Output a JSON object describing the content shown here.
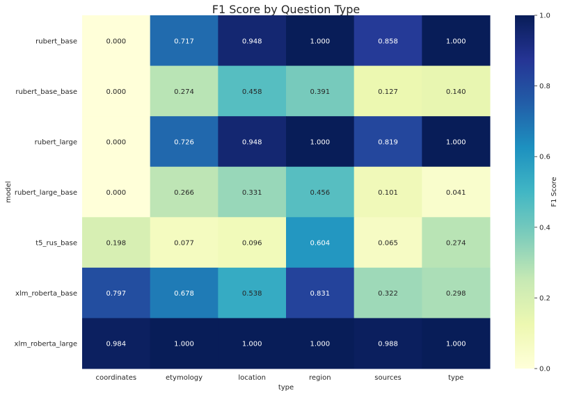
{
  "chart_data": {
    "type": "heatmap",
    "title": "F1 Score by Question Type",
    "xlabel": "type",
    "ylabel": "model",
    "x_categories": [
      "coordinates",
      "etymology",
      "location",
      "region",
      "sources",
      "type"
    ],
    "y_categories": [
      "rubert_base",
      "rubert_base_base",
      "rubert_large",
      "rubert_large_base",
      "t5_rus_base",
      "xlm_roberta_base",
      "xlm_roberta_large"
    ],
    "values": [
      [
        0.0,
        0.717,
        0.948,
        1.0,
        0.858,
        1.0
      ],
      [
        0.0,
        0.274,
        0.458,
        0.391,
        0.127,
        0.14
      ],
      [
        0.0,
        0.726,
        0.948,
        1.0,
        0.819,
        1.0
      ],
      [
        0.0,
        0.266,
        0.331,
        0.456,
        0.101,
        0.041
      ],
      [
        0.198,
        0.077,
        0.096,
        0.604,
        0.065,
        0.274
      ],
      [
        0.797,
        0.678,
        0.538,
        0.831,
        0.322,
        0.298
      ],
      [
        0.984,
        1.0,
        1.0,
        1.0,
        0.988,
        1.0
      ]
    ],
    "value_format": "0.000",
    "colormap": "YlGnBu",
    "colorbar": {
      "label": "F1 Score",
      "range": [
        0,
        1
      ],
      "ticks": [
        0.0,
        0.2,
        0.4,
        0.6,
        0.8,
        1.0
      ],
      "tick_labels": [
        "0.0",
        "0.2",
        "0.4",
        "0.6",
        "0.8",
        "1.0"
      ]
    },
    "grid": false
  }
}
